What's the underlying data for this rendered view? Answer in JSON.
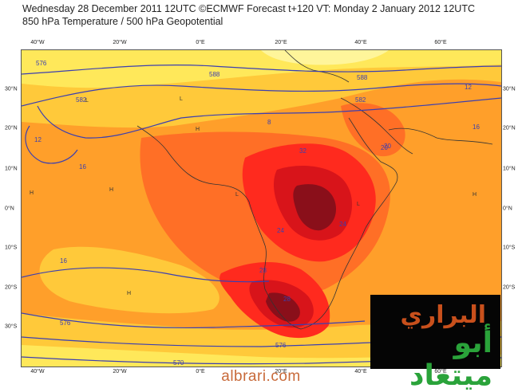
{
  "header": {
    "line1": "Wednesday 28 December 2011 12UTC ©ECMWF Forecast t+120 VT: Monday 2 January 2012 12UTC",
    "line2": "850 hPa Temperature / 500 hPa Geopotential"
  },
  "map": {
    "lon_labels_top": [
      "40°W",
      "20°W",
      "0°E",
      "20°E",
      "40°E",
      "60°E"
    ],
    "lon_labels_bottom": [
      "40°W",
      "20°W",
      "0°E",
      "20°E",
      "40°E",
      "60°E"
    ],
    "lat_labels_left": [
      "30°N",
      "20°N",
      "10°N",
      "0°N",
      "10°S",
      "20°S",
      "30°S"
    ],
    "lat_labels_right": [
      "30°N",
      "20°N",
      "10°N",
      "0°N",
      "10°S",
      "20°S",
      "30°S"
    ],
    "contour_labels": [
      "576",
      "582",
      "588",
      "12",
      "16",
      "8",
      "20",
      "24",
      "28",
      "576",
      "582",
      "588",
      "12",
      "16",
      "570",
      "576",
      "16",
      "20",
      "24",
      "28",
      "32"
    ],
    "pressure_marks": [
      "H",
      "L"
    ],
    "colors": {
      "cold": "#ffe85a",
      "cool": "#ffc93a",
      "mild": "#ff9f2a",
      "warm": "#ff6f26",
      "hot": "#ff2a1e",
      "very_hot": "#d8141a",
      "extreme": "#8a0f1a",
      "contour": "#3b3fb0",
      "coast": "#333333"
    }
  },
  "logo": {
    "line1": "البراري",
    "line2": "أبو ميتعاد"
  },
  "footer": {
    "site": "albrari.com"
  }
}
